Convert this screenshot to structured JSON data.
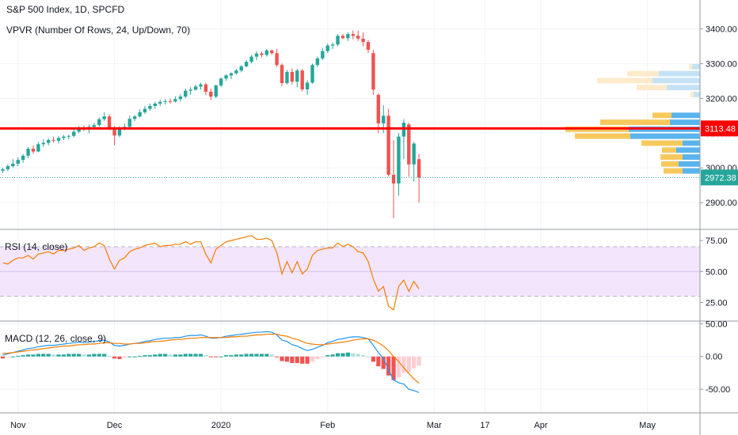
{
  "header": {
    "symbol": "S&P 500 Index, 1D, SPCFD",
    "vpvr": "VPVR (Number Of Rows, 24, Up/Down, 70)",
    "rsi": "RSI (14, close)",
    "macd": "MACD (12, 26, close, 9)"
  },
  "colors": {
    "up": "#26a69a",
    "down": "#ef5350",
    "price_line": "#26a69a",
    "level_line": "#ff0000",
    "rsi_line": "#f57c00",
    "rsi_band": "#f3e5fc",
    "macd_line": "#2196f3",
    "signal_line": "#f57c00",
    "vp_up": "#5ab4ec",
    "vp_down": "#f7c95c",
    "vp_up_light": "#c5e2f5",
    "vp_down_light": "#fdeacb"
  },
  "chart_data": [
    {
      "type": "candlestick",
      "title": "S&P 500 Index, 1D, SPCFD",
      "price_ticks": [
        "3400.00",
        "3300.00",
        "3200.00",
        "3100.00",
        "3000.00",
        "2900.00"
      ],
      "price_tick_values": [
        3400,
        3300,
        3200,
        3100,
        3000,
        2900
      ],
      "ylim": [
        2823,
        3483
      ],
      "x_labels": [
        "Nov",
        "Dec",
        "2020",
        "Feb",
        "Mar",
        "17",
        "Apr",
        "May"
      ],
      "x_label_day_index": [
        3,
        22,
        43,
        64,
        85,
        95,
        106,
        127
      ],
      "last_price": "2972.38",
      "last_price_value": 2972.38,
      "level_price": "3113.48",
      "level_price_value": 3113.48,
      "candles": [
        [
          0,
          2992,
          3000,
          2985,
          2996
        ],
        [
          1,
          2996,
          3010,
          2990,
          3005
        ],
        [
          2,
          3005,
          3025,
          3000,
          3012
        ],
        [
          3,
          3012,
          3030,
          3005,
          3023
        ],
        [
          4,
          3023,
          3040,
          3015,
          3035
        ],
        [
          5,
          3035,
          3060,
          3028,
          3055
        ],
        [
          6,
          3055,
          3065,
          3040,
          3047
        ],
        [
          7,
          3047,
          3075,
          3045,
          3068
        ],
        [
          8,
          3068,
          3082,
          3060,
          3072
        ],
        [
          9,
          3072,
          3085,
          3065,
          3080
        ],
        [
          10,
          3080,
          3090,
          3072,
          3078
        ],
        [
          11,
          3078,
          3092,
          3070,
          3086
        ],
        [
          12,
          3086,
          3095,
          3080,
          3090
        ],
        [
          13,
          3090,
          3095,
          3082,
          3092
        ],
        [
          14,
          3092,
          3110,
          3088,
          3104
        ],
        [
          15,
          3104,
          3120,
          3100,
          3115
        ],
        [
          16,
          3115,
          3122,
          3105,
          3110
        ],
        [
          17,
          3110,
          3125,
          3100,
          3118
        ],
        [
          18,
          3118,
          3130,
          3112,
          3123
        ],
        [
          19,
          3123,
          3145,
          3118,
          3140
        ],
        [
          20,
          3140,
          3160,
          3135,
          3148
        ],
        [
          21,
          3148,
          3154,
          3108,
          3113
        ],
        [
          22,
          3113,
          3120,
          3065,
          3093
        ],
        [
          23,
          3093,
          3120,
          3088,
          3113
        ],
        [
          24,
          3113,
          3127,
          3108,
          3118
        ],
        [
          25,
          3118,
          3150,
          3115,
          3141
        ],
        [
          26,
          3141,
          3152,
          3135,
          3148
        ],
        [
          27,
          3148,
          3168,
          3145,
          3160
        ],
        [
          28,
          3160,
          3178,
          3155,
          3170
        ],
        [
          29,
          3170,
          3185,
          3165,
          3178
        ],
        [
          30,
          3178,
          3190,
          3170,
          3185
        ],
        [
          31,
          3185,
          3196,
          3178,
          3190
        ],
        [
          32,
          3190,
          3198,
          3182,
          3192
        ],
        [
          33,
          3192,
          3200,
          3185,
          3191
        ],
        [
          34,
          3191,
          3206,
          3188,
          3198
        ],
        [
          35,
          3198,
          3212,
          3190,
          3205
        ],
        [
          36,
          3205,
          3228,
          3200,
          3222
        ],
        [
          37,
          3222,
          3232,
          3210,
          3225
        ],
        [
          38,
          3225,
          3240,
          3222,
          3234
        ],
        [
          39,
          3234,
          3245,
          3225,
          3240
        ],
        [
          40,
          3240,
          3245,
          3210,
          3219
        ],
        [
          41,
          3219,
          3228,
          3195,
          3205
        ],
        [
          42,
          3205,
          3240,
          3200,
          3237
        ],
        [
          43,
          3237,
          3260,
          3232,
          3257
        ],
        [
          44,
          3257,
          3270,
          3250,
          3266
        ],
        [
          45,
          3266,
          3275,
          3255,
          3272
        ],
        [
          46,
          3272,
          3285,
          3268,
          3280
        ],
        [
          47,
          3280,
          3296,
          3275,
          3292
        ],
        [
          48,
          3292,
          3310,
          3290,
          3305
        ],
        [
          49,
          3305,
          3325,
          3300,
          3320
        ],
        [
          50,
          3320,
          3335,
          3310,
          3329
        ],
        [
          51,
          3329,
          3335,
          3318,
          3325
        ],
        [
          52,
          3325,
          3342,
          3320,
          3338
        ],
        [
          53,
          3338,
          3340,
          3325,
          3330
        ],
        [
          54,
          3330,
          3342,
          3290,
          3296
        ],
        [
          55,
          3296,
          3300,
          3235,
          3244
        ],
        [
          56,
          3244,
          3282,
          3240,
          3276
        ],
        [
          57,
          3276,
          3286,
          3240,
          3248
        ],
        [
          58,
          3248,
          3285,
          3232,
          3280
        ],
        [
          59,
          3280,
          3285,
          3220,
          3226
        ],
        [
          60,
          3226,
          3252,
          3210,
          3245
        ],
        [
          61,
          3245,
          3300,
          3242,
          3296
        ],
        [
          62,
          3296,
          3320,
          3290,
          3315
        ],
        [
          63,
          3315,
          3345,
          3310,
          3336
        ],
        [
          64,
          3336,
          3358,
          3330,
          3352
        ],
        [
          65,
          3352,
          3360,
          3342,
          3355
        ],
        [
          66,
          3355,
          3385,
          3350,
          3380
        ],
        [
          67,
          3380,
          3385,
          3370,
          3373
        ],
        [
          68,
          3373,
          3390,
          3365,
          3385
        ],
        [
          69,
          3385,
          3395,
          3370,
          3380
        ],
        [
          70,
          3380,
          3395,
          3365,
          3372
        ],
        [
          71,
          3372,
          3390,
          3350,
          3362
        ],
        [
          72,
          3362,
          3368,
          3330,
          3340
        ],
        [
          73,
          3330,
          3340,
          3210,
          3225
        ],
        [
          74,
          3210,
          3215,
          3100,
          3128
        ],
        [
          75,
          3128,
          3180,
          3100,
          3150
        ],
        [
          76,
          3150,
          3170,
          2975,
          2980
        ],
        [
          77,
          2980,
          3080,
          2855,
          2955
        ],
        [
          78,
          2955,
          3100,
          2920,
          3090
        ],
        [
          79,
          3090,
          3140,
          3025,
          3130
        ],
        [
          80,
          3125,
          3130,
          2975,
          3010
        ],
        [
          81,
          3010,
          3075,
          2960,
          3070
        ],
        [
          82,
          3025,
          3040,
          2900,
          2972
        ]
      ],
      "volume_profile": [
        {
          "price": 3290,
          "up": 10,
          "down": 4,
          "in_value_area": false
        },
        {
          "price": 3270,
          "up": 52,
          "down": 40,
          "in_value_area": false
        },
        {
          "price": 3250,
          "up": 60,
          "down": 70,
          "in_value_area": false
        },
        {
          "price": 3230,
          "up": 42,
          "down": 38,
          "in_value_area": false
        },
        {
          "price": 3210,
          "up": 8,
          "down": 4,
          "in_value_area": false
        },
        {
          "price": 3150,
          "up": 36,
          "down": 24,
          "in_value_area": true
        },
        {
          "price": 3130,
          "up": 38,
          "down": 88,
          "in_value_area": true
        },
        {
          "price": 3110,
          "up": 90,
          "down": 80,
          "in_value_area": true
        },
        {
          "price": 3090,
          "up": 88,
          "down": 70,
          "in_value_area": true
        },
        {
          "price": 3070,
          "up": 22,
          "down": 52,
          "in_value_area": true
        },
        {
          "price": 3050,
          "up": 30,
          "down": 18,
          "in_value_area": true
        },
        {
          "price": 3030,
          "up": 22,
          "down": 28,
          "in_value_area": true
        },
        {
          "price": 3010,
          "up": 27,
          "down": 22,
          "in_value_area": true
        },
        {
          "price": 2990,
          "up": 22,
          "down": 24,
          "in_value_area": true
        }
      ]
    },
    {
      "type": "line",
      "title": "RSI (14, close)",
      "y_ticks": [
        "75.00",
        "50.00",
        "25.00"
      ],
      "y_tick_values": [
        75,
        50,
        25
      ],
      "ylim": [
        10,
        84
      ],
      "band": [
        30,
        70
      ],
      "midline": 50,
      "values": [
        57,
        56,
        59,
        61,
        61,
        63,
        60,
        64,
        65,
        66,
        64,
        67,
        67,
        68,
        69,
        71,
        67,
        69,
        70,
        73,
        71,
        60,
        52,
        59,
        61,
        66,
        68,
        69,
        71,
        72,
        73,
        70,
        71,
        71,
        72,
        72,
        74,
        72,
        74,
        74,
        64,
        57,
        68,
        71,
        74,
        75,
        76,
        77,
        78,
        79,
        76,
        76,
        77,
        75,
        65,
        48,
        58,
        49,
        58,
        48,
        52,
        63,
        67,
        68,
        69,
        69,
        73,
        70,
        72,
        70,
        66,
        65,
        58,
        44,
        34,
        38,
        22,
        19,
        38,
        43,
        34,
        42,
        36
      ]
    },
    {
      "type": "bar+line",
      "title": "MACD (12, 26, close, 9)",
      "y_ticks": [
        "50.00",
        "0.00",
        "-50.00"
      ],
      "y_tick_values": [
        50,
        0,
        -50
      ],
      "ylim": [
        -86,
        54
      ],
      "macd": [
        2,
        4,
        6,
        8,
        10,
        12,
        13,
        15,
        16,
        17,
        17,
        18,
        19,
        20,
        21,
        22,
        21,
        22,
        23,
        24,
        25,
        22,
        17,
        16,
        17,
        19,
        20,
        21,
        23,
        24,
        26,
        27,
        28,
        28,
        29,
        29,
        31,
        32,
        32,
        33,
        31,
        28,
        28,
        29,
        31,
        32,
        33,
        34,
        35,
        36,
        37,
        37,
        38,
        37,
        33,
        25,
        23,
        18,
        16,
        12,
        9,
        11,
        14,
        17,
        21,
        23,
        26,
        27,
        29,
        30,
        30,
        29,
        27,
        17,
        6,
        -3,
        -20,
        -36,
        -40,
        -42,
        -50,
        -52,
        -55
      ],
      "signal": [
        5,
        5,
        6,
        7,
        8,
        9,
        10,
        11,
        12,
        13,
        14,
        15,
        16,
        16,
        17,
        18,
        18,
        19,
        19,
        20,
        21,
        21,
        20,
        20,
        19,
        19,
        20,
        20,
        21,
        22,
        23,
        23,
        24,
        25,
        26,
        26,
        27,
        28,
        28,
        29,
        29,
        29,
        29,
        29,
        29,
        30,
        30,
        31,
        31,
        32,
        33,
        33,
        34,
        34,
        34,
        32,
        31,
        28,
        26,
        23,
        20,
        19,
        18,
        18,
        19,
        20,
        21,
        22,
        23,
        25,
        26,
        27,
        27,
        25,
        21,
        16,
        9,
        0,
        -8,
        -17,
        -26,
        -34,
        -41
      ],
      "histogram": [
        -3,
        -1,
        0,
        1,
        2,
        3,
        3,
        4,
        4,
        4,
        3,
        3,
        3,
        4,
        4,
        4,
        3,
        3,
        4,
        4,
        4,
        1,
        -3,
        -4,
        -2,
        0,
        0,
        1,
        2,
        2,
        3,
        4,
        4,
        3,
        3,
        3,
        4,
        4,
        4,
        4,
        2,
        -1,
        -1,
        0,
        2,
        2,
        3,
        3,
        4,
        4,
        4,
        4,
        4,
        3,
        -1,
        -7,
        -8,
        -10,
        -10,
        -11,
        -11,
        -8,
        -4,
        -1,
        2,
        3,
        5,
        5,
        6,
        5,
        4,
        2,
        0,
        -8,
        -15,
        -19,
        -29,
        -36,
        -32,
        -25,
        -24,
        -18,
        -14
      ]
    }
  ]
}
